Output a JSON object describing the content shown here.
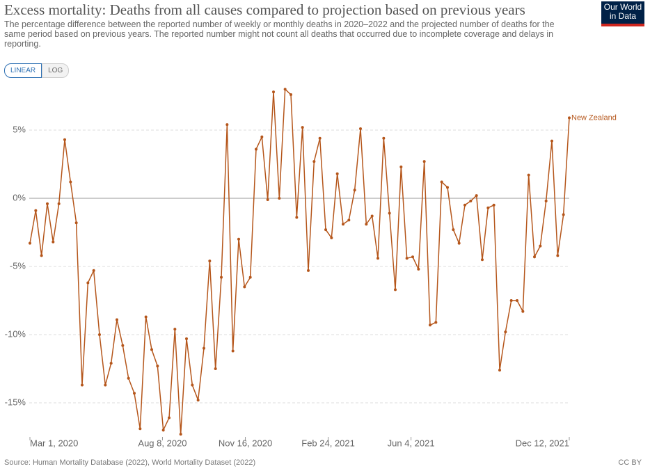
{
  "title": "Excess mortality: Deaths from all causes compared to projection based on previous years",
  "subtitle": "The percentage difference between the reported number of weekly or monthly deaths in 2020–2022 and the projected number of deaths for the same period based on previous years. The reported number might not count all deaths that occurred due to incomplete coverage and delays in reporting.",
  "logo": "Our World in Data",
  "buttons": [
    "LINEAR",
    "LOG"
  ],
  "source": "Source: Human Mortality Database (2022), World Mortality Dataset (2022)",
  "license": "CC BY",
  "chart_data": {
    "type": "line",
    "x": [
      "2020-03-01",
      "2020-03-08",
      "2020-03-15",
      "2020-03-22",
      "2020-03-29",
      "2020-04-05",
      "2020-04-12",
      "2020-04-19",
      "2020-04-26",
      "2020-05-03",
      "2020-05-10",
      "2020-05-17",
      "2020-05-24",
      "2020-05-31",
      "2020-06-07",
      "2020-06-14",
      "2020-06-21",
      "2020-06-28",
      "2020-07-05",
      "2020-07-12",
      "2020-07-19",
      "2020-07-26",
      "2020-08-02",
      "2020-08-09",
      "2020-08-16",
      "2020-08-23",
      "2020-08-30",
      "2020-09-06",
      "2020-09-13",
      "2020-09-20",
      "2020-09-27",
      "2020-10-04",
      "2020-10-11",
      "2020-10-18",
      "2020-10-25",
      "2020-11-01",
      "2020-11-08",
      "2020-11-15",
      "2020-11-22",
      "2020-11-29",
      "2020-12-06",
      "2020-12-13",
      "2020-12-20",
      "2020-12-27",
      "2021-01-03",
      "2021-01-10",
      "2021-01-17",
      "2021-01-24",
      "2021-01-31",
      "2021-02-07",
      "2021-02-14",
      "2021-02-21",
      "2021-02-28",
      "2021-03-07",
      "2021-03-14",
      "2021-03-21",
      "2021-03-28",
      "2021-04-04",
      "2021-04-11",
      "2021-04-18",
      "2021-04-25",
      "2021-05-02",
      "2021-05-09",
      "2021-05-16",
      "2021-05-23",
      "2021-05-30",
      "2021-06-06",
      "2021-06-13",
      "2021-06-20",
      "2021-06-27",
      "2021-07-04",
      "2021-07-11",
      "2021-07-18",
      "2021-07-25",
      "2021-08-01",
      "2021-08-08",
      "2021-08-15",
      "2021-08-22",
      "2021-08-29",
      "2021-09-05",
      "2021-09-12",
      "2021-09-19",
      "2021-09-26",
      "2021-10-03",
      "2021-10-10",
      "2021-10-17",
      "2021-10-24",
      "2021-10-31",
      "2021-11-07",
      "2021-11-14",
      "2021-11-21",
      "2021-11-28",
      "2021-12-05",
      "2021-12-12"
    ],
    "series": [
      {
        "name": "New Zealand",
        "color": "#b5561b",
        "values": [
          -3.3,
          -0.9,
          -4.2,
          -0.4,
          -3.2,
          -0.4,
          4.3,
          1.2,
          -1.8,
          -13.7,
          -6.2,
          -5.3,
          -10,
          -13.7,
          -12.1,
          -8.9,
          -10.8,
          -13.2,
          -14.3,
          -16.9,
          -8.7,
          -11.1,
          -12.3,
          -17.0,
          -16.1,
          -9.6,
          -17.3,
          -10.3,
          -13.7,
          -14.8,
          -11.0,
          -4.6,
          -12.5,
          -5.8,
          5.4,
          -11.2,
          -3.0,
          -6.5,
          -5.8,
          3.6,
          4.5,
          -0.1,
          7.8,
          0,
          8.0,
          7.6,
          -1.4,
          5.2,
          -5.3,
          2.7,
          4.4,
          -2.3,
          -2.9,
          1.8,
          -1.9,
          -1.6,
          0.6,
          5.1,
          -1.9,
          -1.3,
          -4.4,
          4.4,
          -1.1,
          -6.7,
          2.3,
          -4.4,
          -4.3,
          -5.2,
          2.7,
          -9.3,
          -9.1,
          1.2,
          0.8,
          -2.3,
          -3.3,
          -0.5,
          -0.2,
          0.2,
          -4.5,
          -0.7,
          -0.5,
          -12.6,
          -9.8,
          -7.5,
          -7.5,
          -8.3,
          1.7,
          -4.3,
          -3.5,
          -0.2,
          4.2,
          -4.2,
          -1.2,
          5.9
        ]
      }
    ],
    "xlim": [
      "2020-03-01",
      "2021-12-12"
    ],
    "xticks": [
      {
        "value": "2020-03-01",
        "label": "Mar 1, 2020"
      },
      {
        "value": "2020-08-08",
        "label": "Aug 8, 2020"
      },
      {
        "value": "2020-11-16",
        "label": "Nov 16, 2020"
      },
      {
        "value": "2021-02-24",
        "label": "Feb 24, 2021"
      },
      {
        "value": "2021-06-04",
        "label": "Jun 4, 2021"
      },
      {
        "value": "2021-12-12",
        "label": "Dec 12, 2021"
      }
    ],
    "ylim": [
      -17.5,
      8.5
    ],
    "yticks": [
      {
        "value": -15,
        "label": "-15%"
      },
      {
        "value": -10,
        "label": "-10%"
      },
      {
        "value": -5,
        "label": "-5%"
      },
      {
        "value": 0,
        "label": "0%"
      },
      {
        "value": 5,
        "label": "5%"
      }
    ],
    "grid": true
  }
}
